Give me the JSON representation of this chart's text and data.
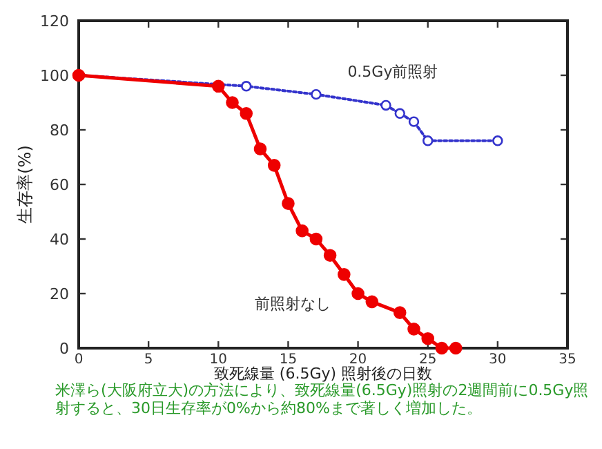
{
  "chart_data": {
    "type": "line",
    "xlabel": "致死線量 (6.5Gy) 照射後の日数",
    "ylabel": "生存率(%)",
    "xlim": [
      0,
      35
    ],
    "xticks": [
      0,
      5,
      10,
      15,
      20,
      25,
      30,
      35
    ],
    "ylim": [
      0,
      120
    ],
    "yticks": [
      0,
      20,
      40,
      60,
      80,
      100,
      120
    ],
    "grid": false,
    "series": [
      {
        "name": "0.5Gy前照射",
        "color": "#3333cc",
        "marker": "circle",
        "line_style": "dotted",
        "x": [
          0,
          12,
          17,
          22,
          23,
          24,
          25,
          30
        ],
        "values": [
          100,
          96,
          93,
          89,
          86,
          83,
          76,
          76
        ]
      },
      {
        "name": "前照射なし",
        "color": "#ee0000",
        "marker": "circle",
        "line_style": "solid",
        "x": [
          0,
          10,
          11,
          12,
          13,
          14,
          15,
          16,
          17,
          18,
          19,
          20,
          21,
          23,
          24,
          25,
          26,
          27
        ],
        "values": [
          100,
          96,
          90,
          86,
          73,
          67,
          53,
          43,
          40,
          34,
          27,
          20,
          17,
          13,
          7,
          3.5,
          0,
          0
        ]
      }
    ],
    "annotations": [
      "米澤ら(大阪府立大)の方法により、致死線量(6.5Gy)照射の2週間前に0.5Gy照射すると、30日生存率が0%から約80%まで著しく増加した。"
    ]
  }
}
